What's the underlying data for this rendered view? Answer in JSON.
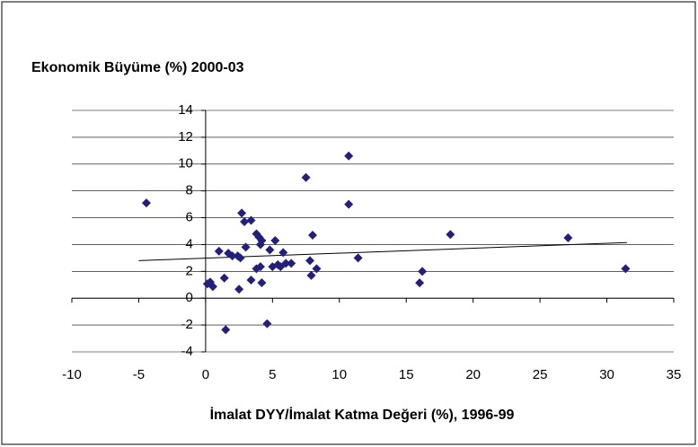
{
  "chart_data": {
    "type": "scatter",
    "title": "Ekonomik Büyüme (%) 2000-03",
    "x_label": "İmalat DYY/İmalat Katma Değeri (%), 1996-99",
    "color": "#22207a",
    "x": [
      -4.43,
      0.13,
      0.34,
      0.54,
      1.0,
      1.4,
      1.5,
      1.7,
      2.0,
      2.4,
      2.6,
      2.5,
      2.7,
      2.9,
      3.0,
      3.4,
      3.4,
      3.8,
      3.8,
      4.0,
      4.1,
      4.1,
      4.2,
      4.2,
      4.6,
      4.8,
      5.0,
      5.2,
      5.4,
      5.6,
      5.8,
      6.0,
      6.4,
      7.5,
      7.8,
      7.9,
      8.0,
      8.3,
      10.7,
      10.7,
      11.4,
      16.0,
      16.2,
      18.3,
      27.1,
      31.4
    ],
    "values": [
      7.1,
      1.07,
      1.2,
      0.87,
      3.5,
      1.5,
      -2.35,
      3.35,
      3.15,
      3.15,
      3.0,
      0.67,
      6.35,
      5.7,
      3.8,
      5.8,
      1.35,
      2.2,
      4.8,
      4.55,
      4.0,
      2.35,
      1.15,
      4.3,
      -1.9,
      3.6,
      2.35,
      4.3,
      2.5,
      2.35,
      3.4,
      2.6,
      2.6,
      9.0,
      2.8,
      1.7,
      4.7,
      2.2,
      10.6,
      7.0,
      3.0,
      1.14,
      2.0,
      4.75,
      4.5,
      2.2
    ],
    "trendline": {
      "x": [
        -5,
        31.5
      ],
      "values": [
        2.8,
        4.15
      ],
      "color": "#000000"
    },
    "xlim": [
      -10,
      35
    ],
    "xticks": [
      -10,
      -5,
      0,
      5,
      10,
      15,
      20,
      25,
      30,
      35
    ],
    "ylim": [
      -4,
      14
    ],
    "yticks": [
      -4,
      -2,
      0,
      2,
      4,
      6,
      8,
      10,
      12,
      14
    ],
    "grid": true
  }
}
